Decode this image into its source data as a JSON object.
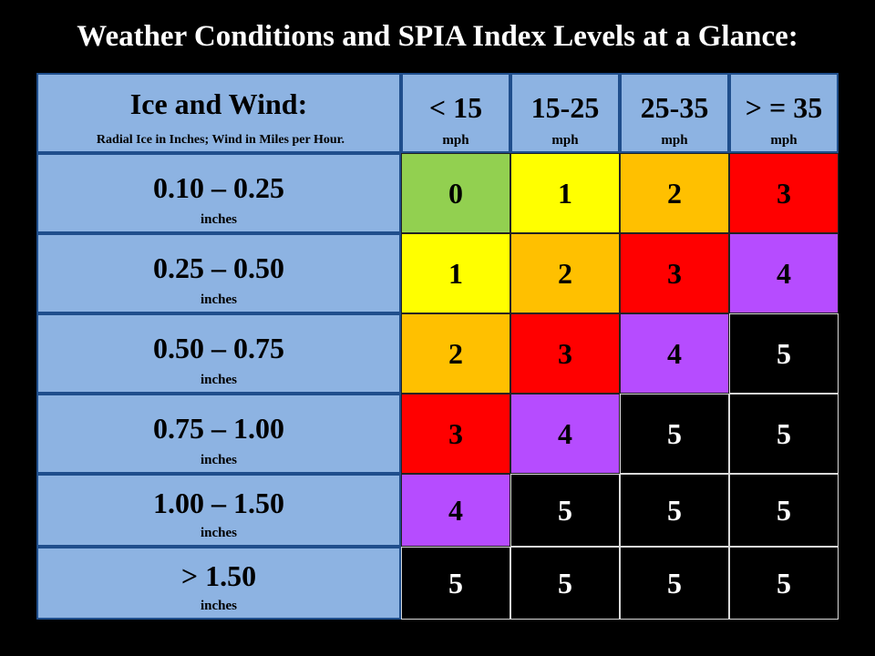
{
  "title": "Weather Conditions and SPIA Index Levels at a Glance:",
  "corner": {
    "title": "Ice and Wind:",
    "subtitle": "Radial Ice in Inches; Wind in Miles per Hour."
  },
  "wind_columns": [
    {
      "label": "< 15",
      "unit": "mph"
    },
    {
      "label": "15-25",
      "unit": "mph"
    },
    {
      "label": "25-35",
      "unit": "mph"
    },
    {
      "label": "> = 35",
      "unit": "mph"
    }
  ],
  "ice_rows": [
    {
      "label": "0.10 – 0.25",
      "unit": "inches",
      "values": [
        "0",
        "1",
        "2",
        "3"
      ]
    },
    {
      "label": "0.25 – 0.50",
      "unit": "inches",
      "values": [
        "1",
        "2",
        "3",
        "4"
      ]
    },
    {
      "label": "0.50 – 0.75",
      "unit": "inches",
      "values": [
        "2",
        "3",
        "4",
        "5"
      ]
    },
    {
      "label": "0.75 – 1.00",
      "unit": "inches",
      "values": [
        "3",
        "4",
        "5",
        "5"
      ]
    },
    {
      "label": "1.00 – 1.50",
      "unit": "inches",
      "values": [
        "4",
        "5",
        "5",
        "5"
      ]
    },
    {
      "label": "> 1.50",
      "unit": "inches",
      "values": [
        "5",
        "5",
        "5",
        "5"
      ]
    }
  ],
  "level_colors": {
    "0": "#92d050",
    "1": "#ffff00",
    "2": "#ffc000",
    "3": "#ff0000",
    "4": "#b64cff",
    "5": "#000000"
  }
}
